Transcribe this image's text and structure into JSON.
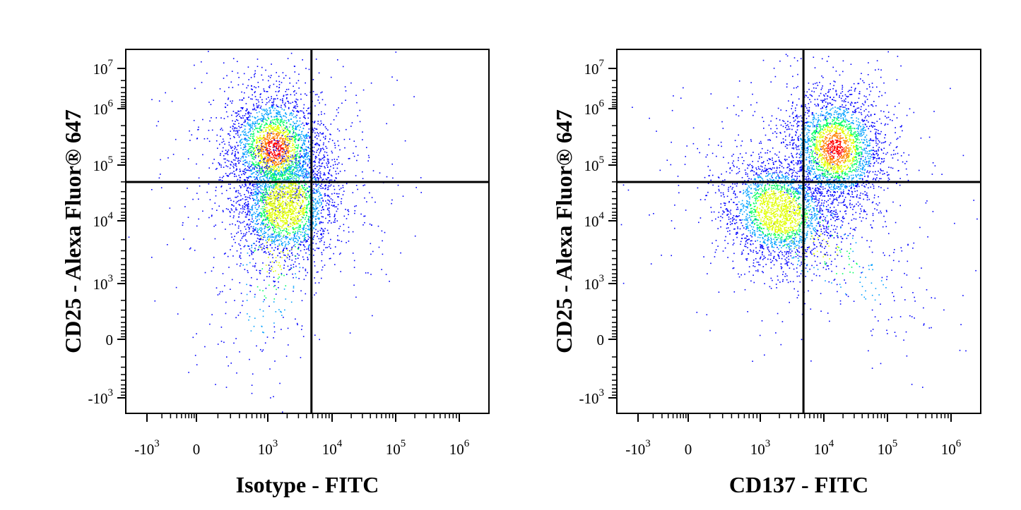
{
  "chart_data": [
    {
      "type": "scatter",
      "subtype": "flow-cytometry-density-dot-plot",
      "title": "",
      "xlabel": "Isotype - FITC",
      "ylabel": "CD25 - Alexa Fluor® 647",
      "x_scale": "biexponential",
      "y_scale": "biexponential",
      "x_ticks": [
        {
          "value": -1000,
          "base": "-10",
          "exp": "3"
        },
        {
          "value": 0,
          "base": "0",
          "exp": ""
        },
        {
          "value": 1000,
          "base": "10",
          "exp": "3"
        },
        {
          "value": 10000,
          "base": "10",
          "exp": "4"
        },
        {
          "value": 100000,
          "base": "10",
          "exp": "5"
        },
        {
          "value": 1000000,
          "base": "10",
          "exp": "6"
        }
      ],
      "y_ticks": [
        {
          "value": 10000000,
          "base": "10",
          "exp": "7"
        },
        {
          "value": 1000000,
          "base": "10",
          "exp": "6"
        },
        {
          "value": 100000,
          "base": "10",
          "exp": "5"
        },
        {
          "value": 10000,
          "base": "10",
          "exp": "4"
        },
        {
          "value": 1000,
          "base": "10",
          "exp": "3"
        },
        {
          "value": 0,
          "base": "0",
          "exp": ""
        },
        {
          "value": -1000,
          "base": "-10",
          "exp": "3"
        }
      ],
      "quadrant_gate": {
        "x": 5000,
        "y": 50000
      },
      "populations": [
        {
          "center_x": 1300,
          "center_y": 200000,
          "weight": 0.5
        },
        {
          "center_x": 2000,
          "center_y": 20000,
          "weight": 0.5
        }
      ],
      "density_colors": [
        "#0000ff",
        "#00a0ff",
        "#00ff60",
        "#e0ff00",
        "#ff8000",
        "#ff0000"
      ]
    },
    {
      "type": "scatter",
      "subtype": "flow-cytometry-density-dot-plot",
      "title": "",
      "xlabel": "CD137 - FITC",
      "ylabel": "CD25 - Alexa Fluor® 647",
      "x_scale": "biexponential",
      "y_scale": "biexponential",
      "x_ticks": [
        {
          "value": -1000,
          "base": "-10",
          "exp": "3"
        },
        {
          "value": 0,
          "base": "0",
          "exp": ""
        },
        {
          "value": 1000,
          "base": "10",
          "exp": "3"
        },
        {
          "value": 10000,
          "base": "10",
          "exp": "4"
        },
        {
          "value": 100000,
          "base": "10",
          "exp": "5"
        },
        {
          "value": 1000000,
          "base": "10",
          "exp": "6"
        }
      ],
      "y_ticks": [
        {
          "value": 10000000,
          "base": "10",
          "exp": "7"
        },
        {
          "value": 1000000,
          "base": "10",
          "exp": "6"
        },
        {
          "value": 100000,
          "base": "10",
          "exp": "5"
        },
        {
          "value": 10000,
          "base": "10",
          "exp": "4"
        },
        {
          "value": 1000,
          "base": "10",
          "exp": "3"
        },
        {
          "value": 0,
          "base": "0",
          "exp": ""
        },
        {
          "value": -1000,
          "base": "-10",
          "exp": "3"
        }
      ],
      "quadrant_gate": {
        "x": 5000,
        "y": 50000
      },
      "populations": [
        {
          "center_x": 15000,
          "center_y": 200000,
          "weight": 0.5
        },
        {
          "center_x": 2000,
          "center_y": 15000,
          "weight": 0.5
        }
      ],
      "density_colors": [
        "#0000ff",
        "#00a0ff",
        "#00ff60",
        "#e0ff00",
        "#ff8000",
        "#ff0000"
      ]
    }
  ]
}
